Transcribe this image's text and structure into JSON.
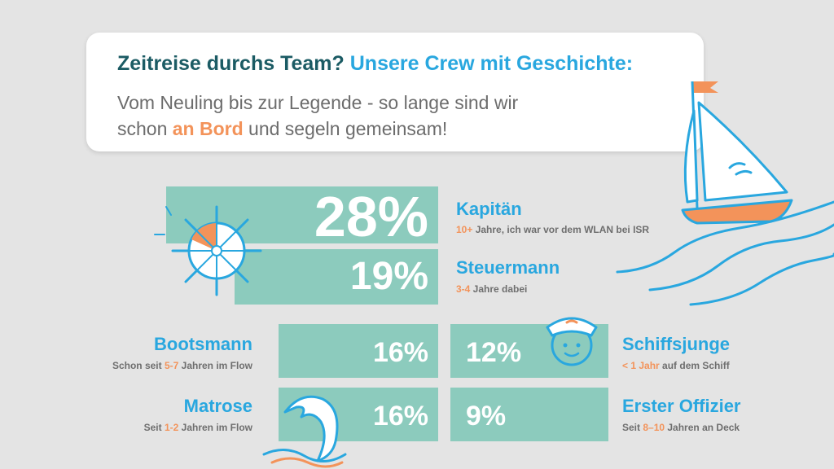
{
  "header": {
    "title_part1": "Zeitreise durchs Team?",
    "title_part2": "Unsere Crew mit Geschichte:",
    "subtitle_line1": "Vom Neuling bis zur Legende - so lange sind wir",
    "subtitle_line2_pre": "schon ",
    "subtitle_line2_highlight": "an Bord",
    "subtitle_line2_post": " und segeln gemeinsam!"
  },
  "roles": {
    "kapitaen": {
      "percent": "28%",
      "value": 28,
      "name": "Kapitän",
      "desc_highlight": "10+",
      "desc_rest": " Jahre, ich war vor dem WLAN bei ISR"
    },
    "steuermann": {
      "percent": "19%",
      "value": 19,
      "name": "Steuermann",
      "desc_highlight": "3-4",
      "desc_rest": " Jahre dabei"
    },
    "bootsmann": {
      "percent": "16%",
      "value": 16,
      "name": "Bootsmann",
      "desc_pre": "Schon seit ",
      "desc_highlight": "5-7",
      "desc_rest": " Jahren im Flow"
    },
    "matrose": {
      "percent": "16%",
      "value": 16,
      "name": "Matrose",
      "desc_pre": "Seit ",
      "desc_highlight": "1-2",
      "desc_rest": " Jahren im Flow"
    },
    "schiffsjunge": {
      "percent": "12%",
      "value": 12,
      "name": "Schiffsjunge",
      "desc_highlight": "< 1 Jahr",
      "desc_rest": " auf dem Schiff"
    },
    "erster_offizier": {
      "percent": "9%",
      "value": 9,
      "name": "Erster Offizier",
      "desc_pre": "Seit ",
      "desc_highlight": "8–10",
      "desc_rest": " Jahren an Deck"
    }
  },
  "colors": {
    "background": "#e4e4e4",
    "bar": "#8ccbbd",
    "title_dark": "#1b5b64",
    "accent_blue": "#29a7df",
    "accent_orange": "#f3935a",
    "text_gray": "#6c6c6c"
  },
  "icons": [
    "ship-wheel-icon",
    "sailboat-icon",
    "waves-icon",
    "sailor-face-icon",
    "wave-splash-icon"
  ]
}
